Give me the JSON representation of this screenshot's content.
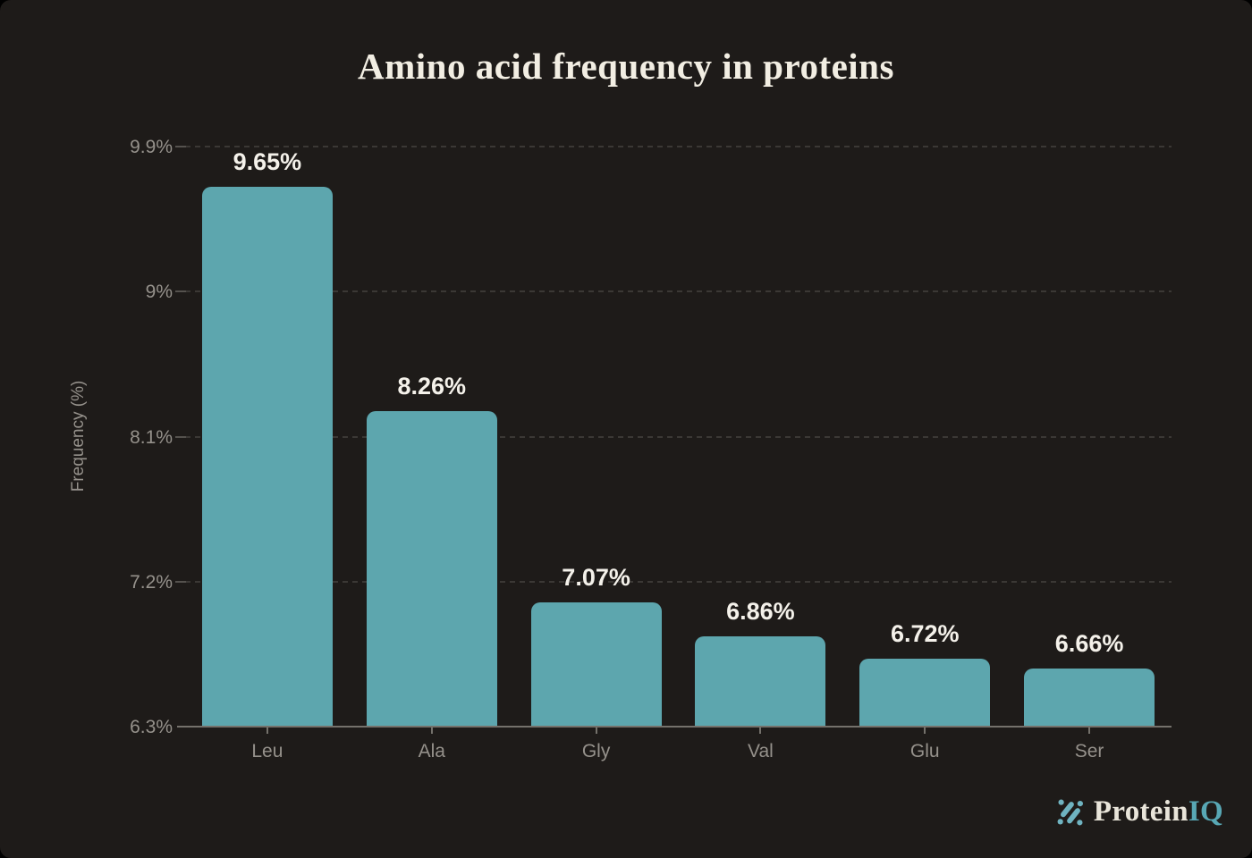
{
  "window": {
    "background": "#000000"
  },
  "card": {
    "background": "#1e1b19"
  },
  "chart_data": {
    "type": "bar",
    "title": "Amino acid frequency in proteins",
    "xlabel": "",
    "ylabel": "Frequency (%)",
    "categories": [
      "Leu",
      "Ala",
      "Gly",
      "Val",
      "Glu",
      "Ser"
    ],
    "values": [
      9.65,
      8.26,
      7.07,
      6.86,
      6.72,
      6.66
    ],
    "value_labels": [
      "9.65%",
      "8.26%",
      "7.07%",
      "6.86%",
      "6.72%",
      "6.66%"
    ],
    "ylim": [
      6.3,
      9.9
    ],
    "yticks": [
      6.3,
      7.2,
      8.1,
      9,
      9.9
    ],
    "ytick_labels": [
      "6.3%",
      "7.2%",
      "8.1%",
      "9%",
      "9.9%"
    ],
    "grid": "horizontal-dashed",
    "legend": "none",
    "colors": {
      "bar": "#5da6ae",
      "grid_line": "#3b3835",
      "axis_line": "#74716b",
      "tick_text": "#95918b",
      "value_text": "#f4f1ea",
      "title_text": "#f2eee3"
    }
  },
  "branding": {
    "logo_icon": "molecule-dots-icon",
    "name_primary": "Protein",
    "name_accent": "IQ",
    "primary_color": "#e9e5da",
    "accent_color": "#58a7b4",
    "icon_color": "#6fb3c0"
  }
}
